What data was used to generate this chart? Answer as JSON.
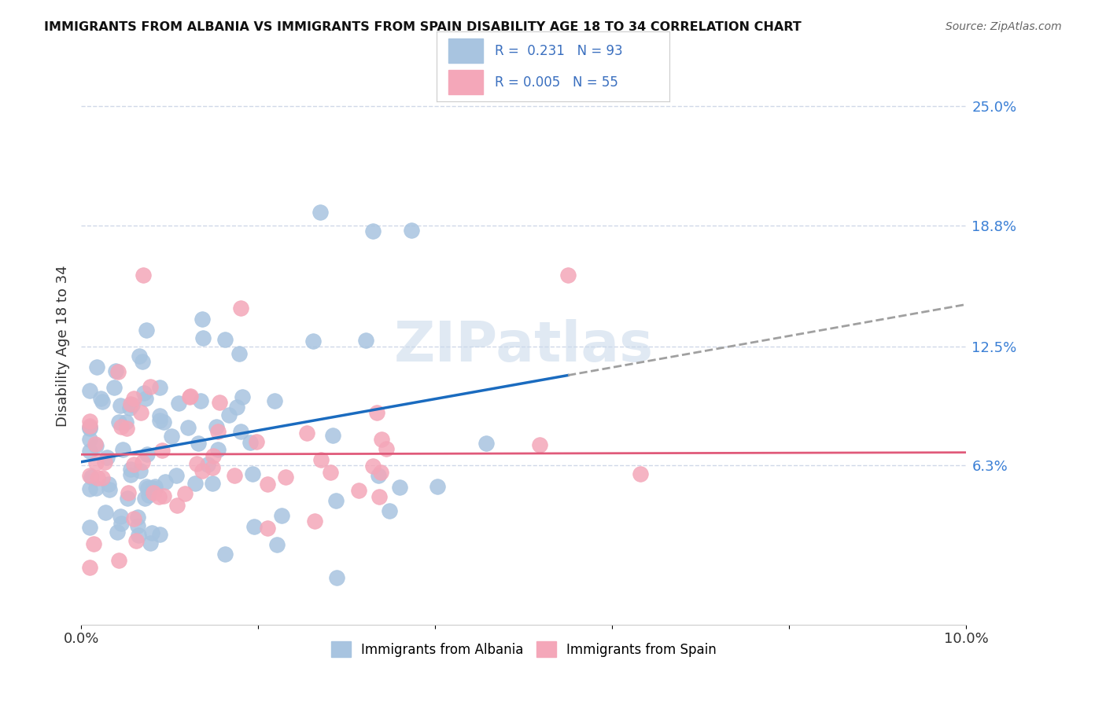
{
  "title": "IMMIGRANTS FROM ALBANIA VS IMMIGRANTS FROM SPAIN DISABILITY AGE 18 TO 34 CORRELATION CHART",
  "source": "Source: ZipAtlas.com",
  "ylabel": "Disability Age 18 to 34",
  "xmin": 0.0,
  "xmax": 0.1,
  "ymin": -0.02,
  "ymax": 0.27,
  "albania_R": 0.231,
  "albania_N": 93,
  "spain_R": 0.005,
  "spain_N": 55,
  "albania_color": "#a8c4e0",
  "spain_color": "#f4a7b9",
  "albania_line_color": "#1a6bbf",
  "spain_line_color": "#e05a7a",
  "dashed_line_color": "#a0a0a0",
  "legend_color": "#3a6fbf",
  "watermark": "ZIPatlas",
  "background_color": "#ffffff",
  "grid_color": "#d0d8e8"
}
